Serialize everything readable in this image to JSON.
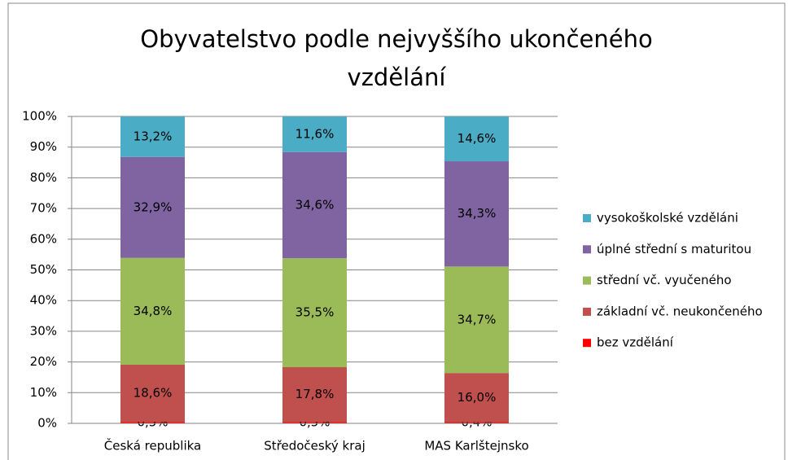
{
  "chart_data": {
    "type": "stacked_bar_100",
    "title": [
      "Obyvatelstvo podle nejvyššího ukončeného",
      "vzdělání"
    ],
    "categories": [
      "Česká republika",
      "Středočeský kraj",
      "MAS Karlštejnsko"
    ],
    "series": [
      {
        "name": "bez vzdělání",
        "color": "#ff0000",
        "values": [
          0.5,
          0.5,
          0.4
        ],
        "value_labels": [
          "0,5%",
          "0,5%",
          "0,4%"
        ]
      },
      {
        "name": "základní vč. neukončeného",
        "color": "#c0504d",
        "values": [
          18.6,
          17.8,
          16.0
        ],
        "value_labels": [
          "18,6%",
          "17,8%",
          "16,0%"
        ]
      },
      {
        "name": "střední vč. vyučeného",
        "color": "#9bbb59",
        "values": [
          34.8,
          35.5,
          34.7
        ],
        "value_labels": [
          "34,8%",
          "35,5%",
          "34,7%"
        ]
      },
      {
        "name": "úplné střední s maturitou",
        "color": "#8064a2",
        "values": [
          32.9,
          34.6,
          34.3
        ],
        "value_labels": [
          "32,9%",
          "34,6%",
          "34,3%"
        ]
      },
      {
        "name": "vysokoškolské vzděláni",
        "color": "#4bacc6",
        "values": [
          13.2,
          11.6,
          14.6
        ],
        "value_labels": [
          "13,2%",
          "11,6%",
          "14,6%"
        ]
      }
    ],
    "ylim": [
      0,
      100
    ],
    "yticks": [
      {
        "value": 0,
        "label": "0%"
      },
      {
        "value": 10,
        "label": "10%"
      },
      {
        "value": 20,
        "label": "20%"
      },
      {
        "value": 30,
        "label": "30%"
      },
      {
        "value": 40,
        "label": "40%"
      },
      {
        "value": 50,
        "label": "50%"
      },
      {
        "value": 60,
        "label": "60%"
      },
      {
        "value": 70,
        "label": "70%"
      },
      {
        "value": 80,
        "label": "80%"
      },
      {
        "value": 90,
        "label": "90%"
      },
      {
        "value": 100,
        "label": "100%"
      }
    ],
    "grid": true,
    "legend": "right"
  }
}
